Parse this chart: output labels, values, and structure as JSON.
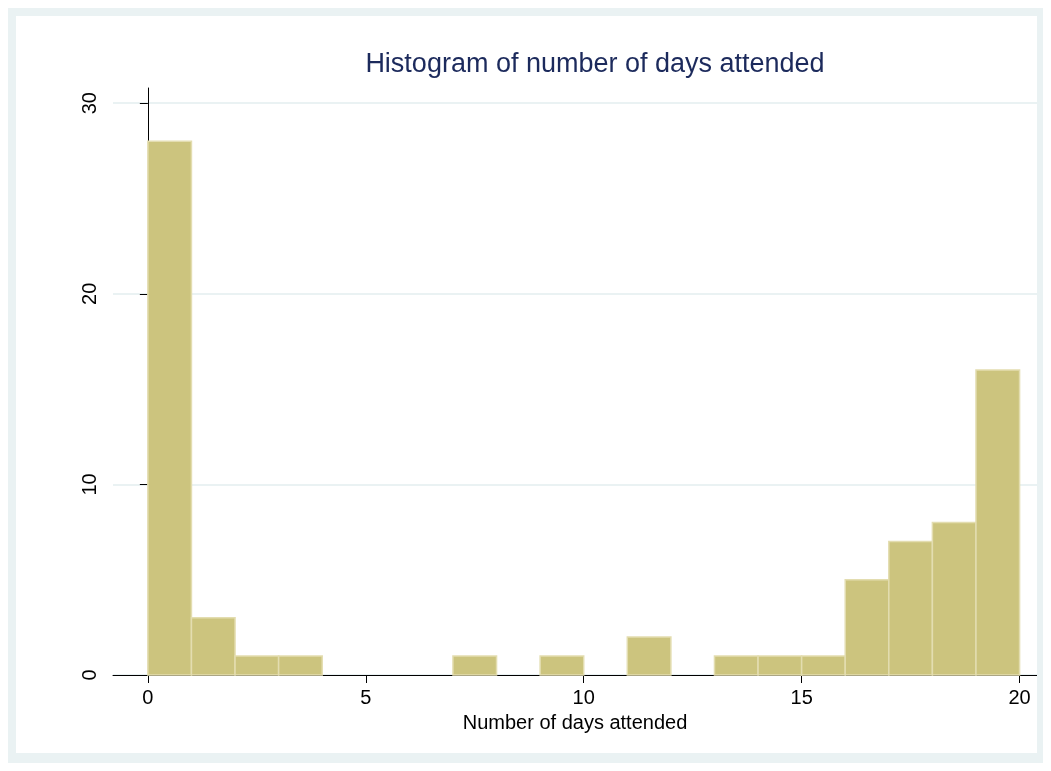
{
  "chart_data": {
    "type": "histogram",
    "title": "Histogram of number of days attended",
    "xlabel": "Number of days attended",
    "bins": [
      0,
      1,
      2,
      3,
      4,
      5,
      6,
      7,
      8,
      9,
      10,
      11,
      12,
      13,
      14,
      15,
      16,
      17,
      18,
      19,
      20
    ],
    "values": [
      28,
      3,
      1,
      1,
      0,
      0,
      0,
      1,
      0,
      1,
      0,
      2,
      0,
      1,
      1,
      1,
      5,
      7,
      8,
      16
    ],
    "color": "#ccc47e",
    "xlim": [
      -0.8,
      20.4
    ],
    "xticks": [
      0,
      5,
      10,
      15,
      20
    ],
    "ylim": [
      0,
      30.8
    ],
    "yticks": [
      0,
      10,
      20,
      30
    ],
    "grid": "y"
  }
}
